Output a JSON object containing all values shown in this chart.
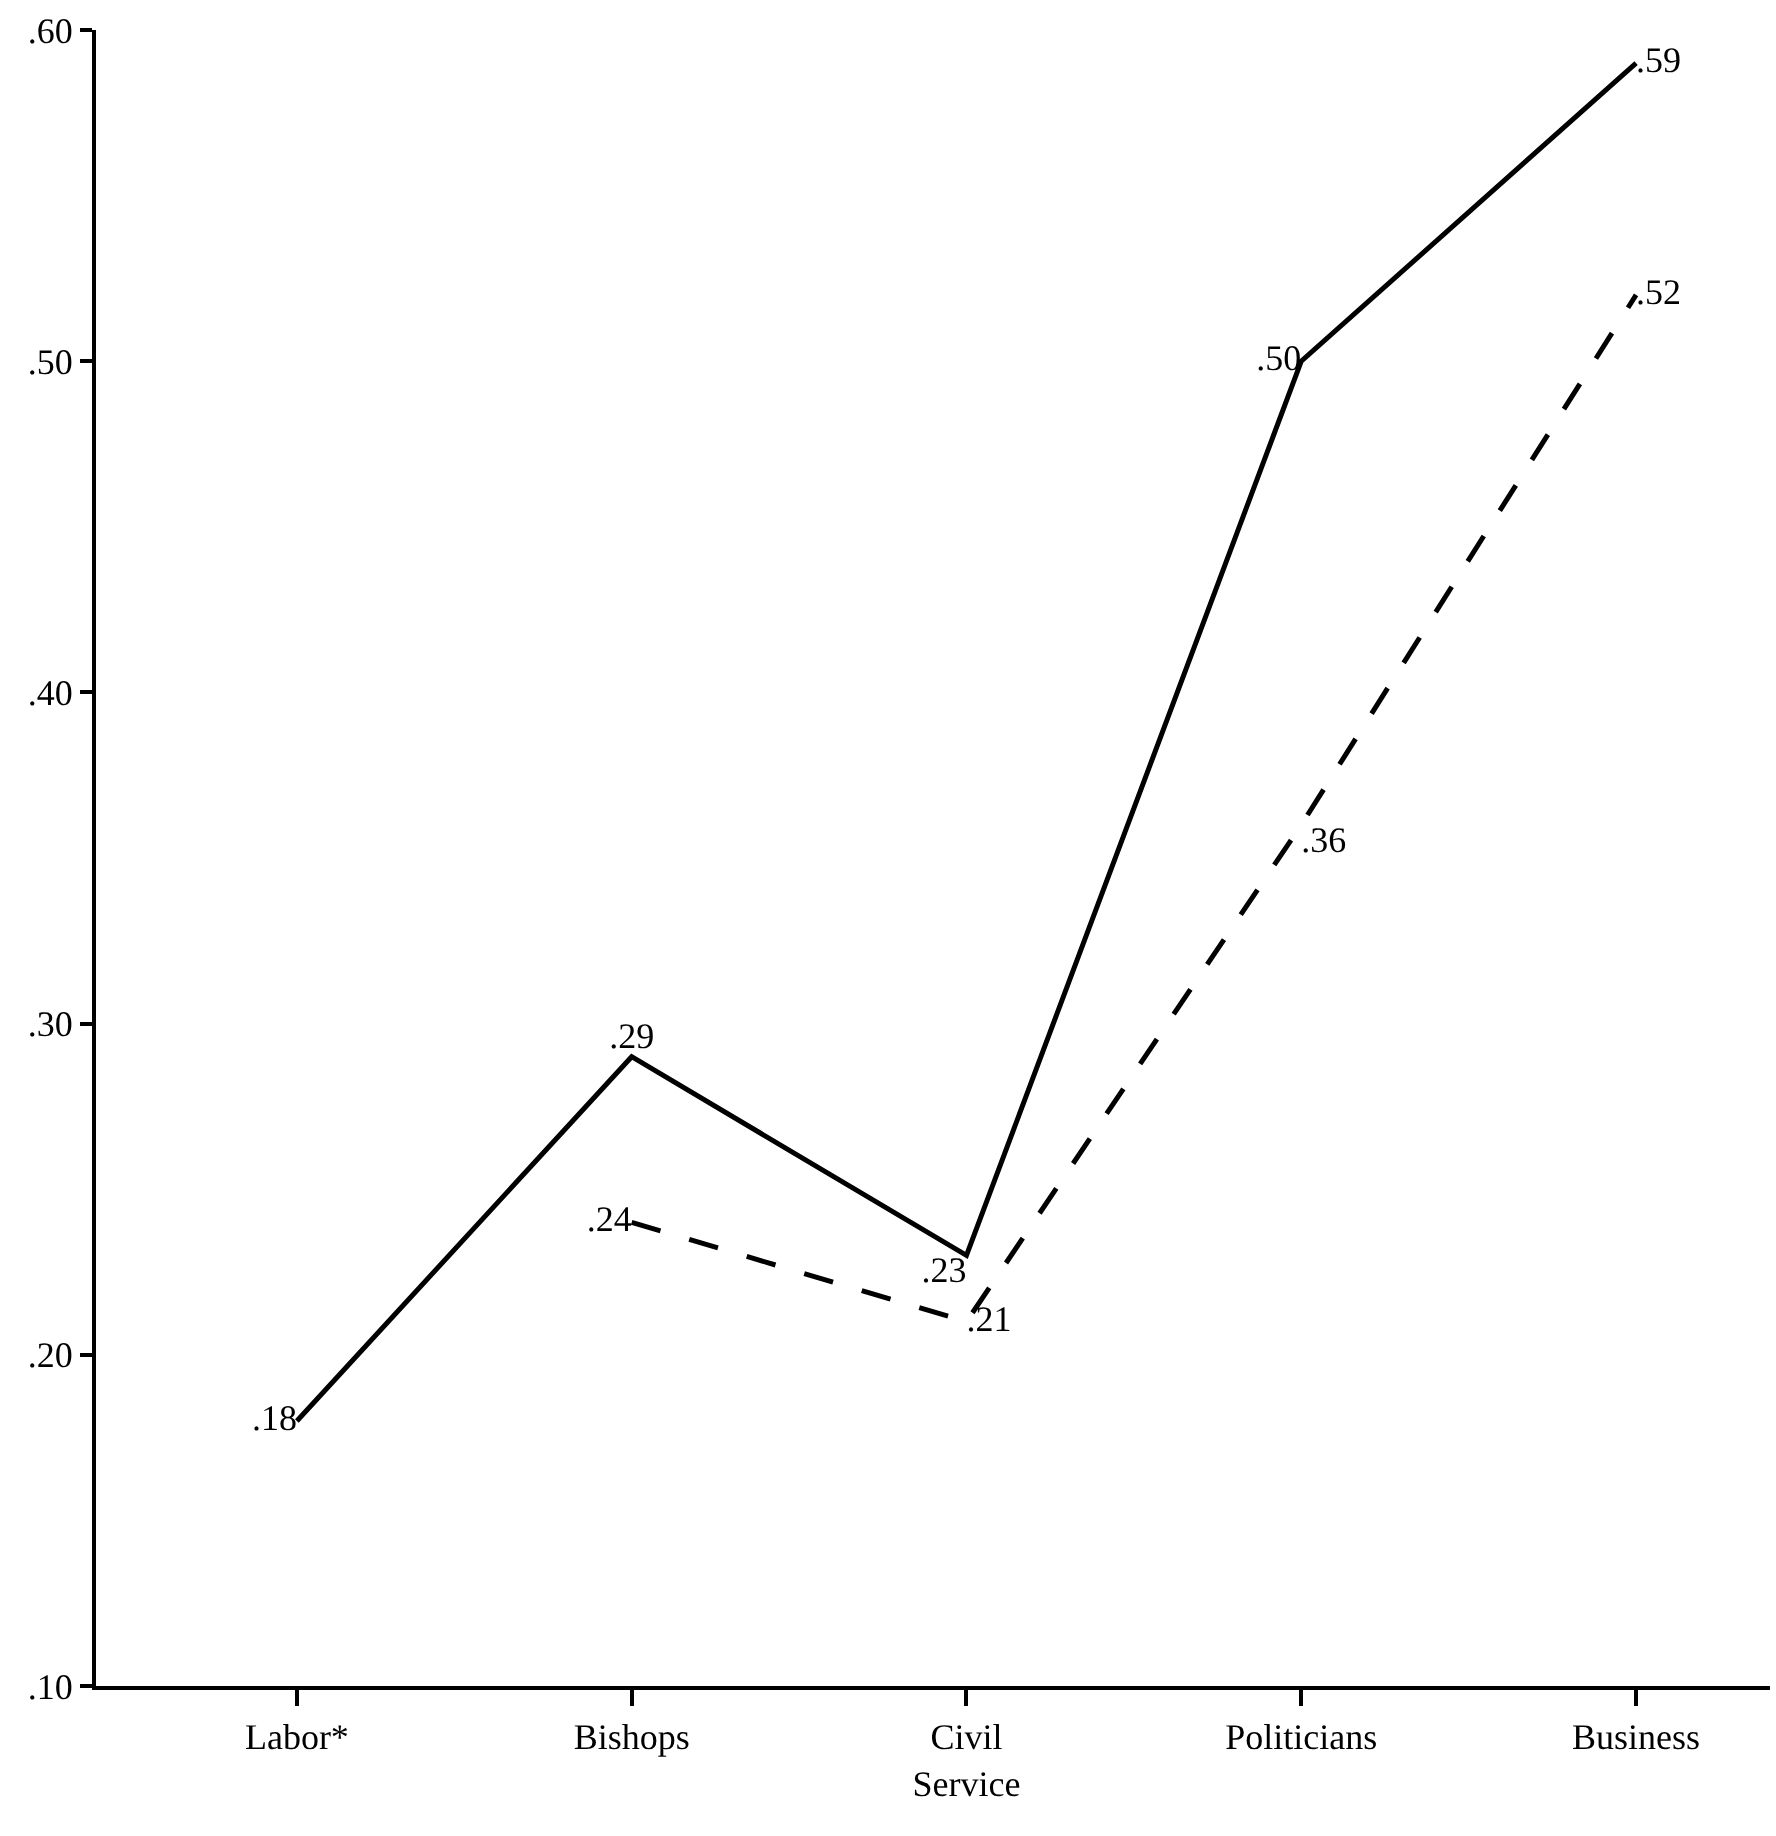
{
  "chart_data": {
    "type": "line",
    "categories": [
      "Labor*",
      "Bishops",
      "Civil\nService",
      "Politicians",
      "Business"
    ],
    "series": [
      {
        "color": "#000000",
        "line_style": "solid",
        "values": [
          0.18,
          0.29,
          0.23,
          0.5,
          0.59
        ],
        "value_labels": [
          ".18",
          ".29",
          ".23",
          ".50",
          ".59"
        ]
      },
      {
        "color": "#000000",
        "line_style": "dashed",
        "values": [
          null,
          0.24,
          0.21,
          0.36,
          0.52
        ],
        "value_labels": [
          null,
          ".24",
          ".21",
          ".36",
          ".52"
        ]
      }
    ],
    "ylim": [
      0.1,
      0.6
    ],
    "yticks": [
      {
        "value": 0.1,
        "label": ".10"
      },
      {
        "value": 0.2,
        "label": ".20"
      },
      {
        "value": 0.3,
        "label": ".30"
      },
      {
        "value": 0.4,
        "label": ".40"
      },
      {
        "value": 0.5,
        "label": ".50"
      },
      {
        "value": 0.6,
        "label": ".60"
      }
    ],
    "marker": "none"
  }
}
